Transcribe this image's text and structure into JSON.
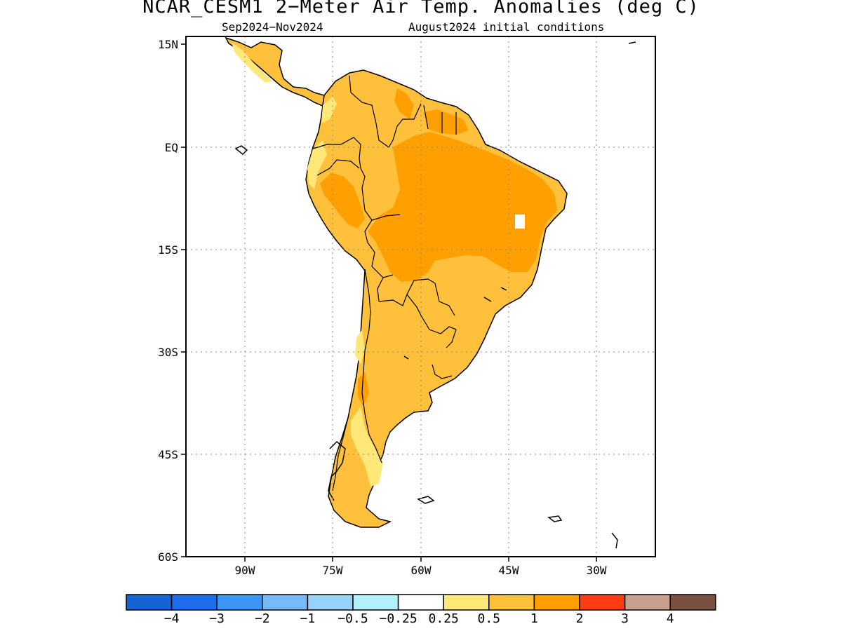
{
  "title": "NCAR_CESM1 2−Meter Air Temp. Anomalies (deg C)",
  "subtitle_left": "Sep2024−Nov2024",
  "subtitle_right": "August2024 initial conditions",
  "map": {
    "region": "South America",
    "lon_range": [
      -100,
      -20
    ],
    "lat_range": [
      -60,
      15
    ],
    "lat_ticks": [
      "15N",
      "EQ",
      "15S",
      "30S",
      "45S",
      "60S"
    ],
    "lon_ticks": [
      "90W",
      "75W",
      "60W",
      "45W",
      "30W"
    ],
    "grid": "dotted",
    "field": "2-meter air temperature anomaly",
    "dominant_anomaly_classes": [
      "0.5 to 1",
      "1 to 2"
    ]
  },
  "colorbar": {
    "colors": [
      "#1464d2",
      "#1e6eeb",
      "#3c96f5",
      "#78b9fa",
      "#96d2fa",
      "#b4f0fa",
      "#ffffff",
      "#ffe878",
      "#ffc03c",
      "#ffa000",
      "#ff3c14",
      "#c8a090",
      "#7a5040"
    ],
    "labels": [
      "−4",
      "−3",
      "−2",
      "−1",
      "−0.5",
      "−0.25",
      "0.25",
      "0.5",
      "1",
      "2",
      "3",
      "4"
    ]
  }
}
